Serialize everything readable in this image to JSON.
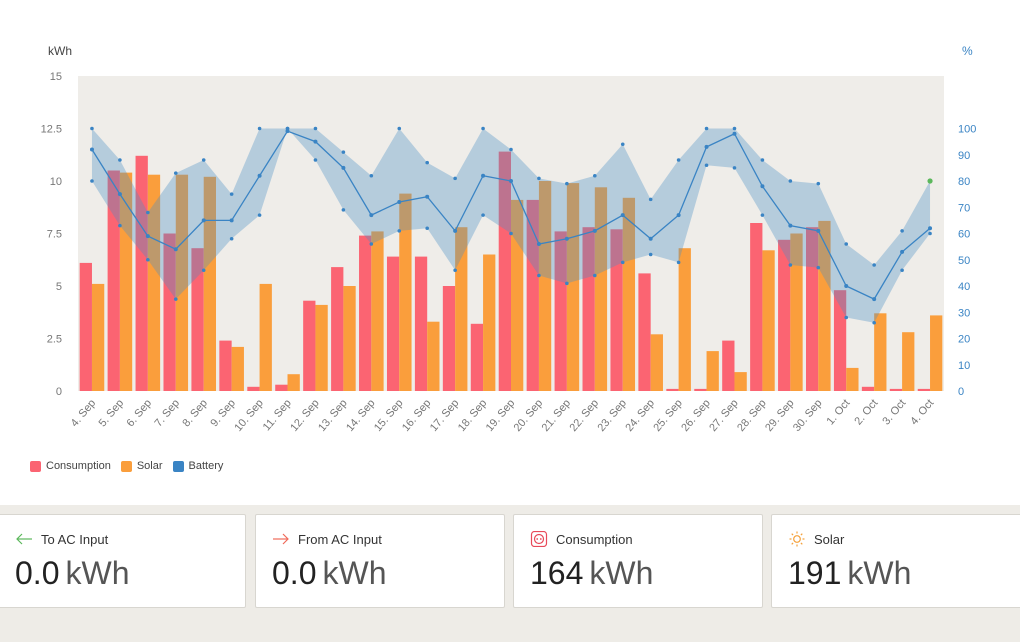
{
  "chart_data": {
    "type": "bar",
    "categories": [
      "4. Sep",
      "5. Sep",
      "6. Sep",
      "7. Sep",
      "8. Sep",
      "9. Sep",
      "10. Sep",
      "11. Sep",
      "12. Sep",
      "13. Sep",
      "14. Sep",
      "15. Sep",
      "16. Sep",
      "17. Sep",
      "18. Sep",
      "19. Sep",
      "20. Sep",
      "21. Sep",
      "22. Sep",
      "23. Sep",
      "24. Sep",
      "25. Sep",
      "26. Sep",
      "27. Sep",
      "28. Sep",
      "29. Sep",
      "30. Sep",
      "1. Oct",
      "2. Oct",
      "3. Oct",
      "4. Oct"
    ],
    "series": [
      {
        "name": "Consumption",
        "color": "#fb6472",
        "values": [
          6.1,
          10.5,
          11.2,
          7.5,
          6.8,
          2.4,
          0.2,
          0.3,
          4.3,
          5.9,
          7.4,
          6.4,
          6.4,
          5.0,
          3.2,
          11.4,
          9.1,
          7.6,
          7.8,
          7.7,
          5.6,
          0.1,
          0.1,
          2.4,
          8.0,
          7.2,
          7.8,
          4.8,
          0.2,
          0.1,
          0.1
        ]
      },
      {
        "name": "Solar",
        "color": "#fa9e3c",
        "values": [
          5.1,
          10.4,
          10.3,
          10.3,
          10.2,
          2.1,
          5.1,
          0.8,
          4.1,
          5.0,
          7.6,
          9.4,
          3.3,
          7.8,
          6.5,
          9.1,
          10.0,
          9.9,
          9.7,
          9.2,
          2.7,
          6.8,
          1.9,
          0.9,
          6.7,
          7.5,
          8.1,
          1.1,
          3.7,
          2.8,
          3.6
        ]
      },
      {
        "name": "Battery",
        "color": "#3a84c4",
        "axis": "right",
        "values": [
          92,
          75,
          59,
          54,
          65,
          65,
          82,
          99,
          95,
          85,
          67,
          72,
          74,
          61,
          82,
          80,
          56,
          58,
          61,
          67,
          58,
          67,
          93,
          98,
          78,
          63,
          61,
          40,
          35,
          53,
          62
        ],
        "max": [
          100,
          88,
          68,
          83,
          88,
          75,
          100,
          100,
          100,
          91,
          82,
          100,
          87,
          81,
          100,
          92,
          81,
          79,
          82,
          94,
          73,
          88,
          100,
          100,
          88,
          80,
          79,
          56,
          48,
          61,
          80
        ],
        "min": [
          80,
          63,
          50,
          35,
          46,
          58,
          67,
          100,
          88,
          69,
          56,
          61,
          62,
          46,
          67,
          60,
          44,
          41,
          44,
          49,
          52,
          49,
          86,
          85,
          67,
          48,
          47,
          28,
          26,
          46,
          60
        ]
      }
    ],
    "y_left": {
      "unit": "kWh",
      "range": [
        0,
        15
      ],
      "ticks": [
        "0",
        "2.5",
        "5",
        "7.5",
        "10",
        "12.5",
        "15"
      ]
    },
    "y_right": {
      "unit": "%",
      "range": [
        0,
        120
      ],
      "ticks": [
        "0",
        "10",
        "20",
        "30",
        "40",
        "50",
        "60",
        "70",
        "80",
        "90",
        "100"
      ]
    },
    "legend_position": "bottom-left",
    "grid": false
  },
  "legend": [
    {
      "label": "Consumption",
      "color": "#fb6472"
    },
    {
      "label": "Solar",
      "color": "#fa9e3c"
    },
    {
      "label": "Battery",
      "color": "#3a84c4"
    }
  ],
  "cards": [
    {
      "title": "To AC Input",
      "value": "0.0",
      "unit": "kWh",
      "icon": "arrow-left-icon",
      "color": "#5cb85c"
    },
    {
      "title": "From AC Input",
      "value": "0.0",
      "unit": "kWh",
      "icon": "arrow-right-icon",
      "color": "#f06a5a"
    },
    {
      "title": "Consumption",
      "value": "164",
      "unit": "kWh",
      "icon": "outlet-icon",
      "color": "#e84a5a"
    },
    {
      "title": "Solar",
      "value": "191",
      "unit": "kWh",
      "icon": "sun-icon",
      "color": "#f5a13a"
    }
  ]
}
